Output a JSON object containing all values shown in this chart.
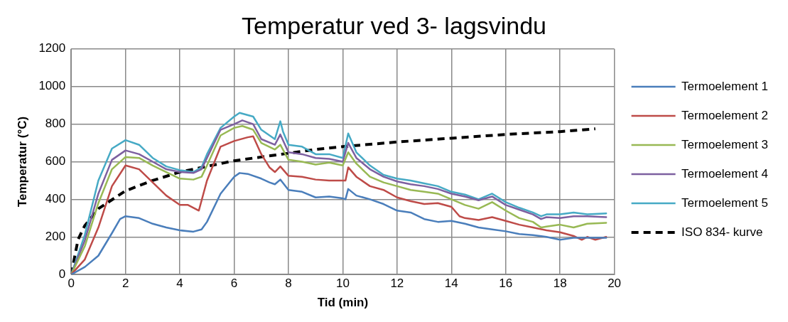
{
  "chart_data": {
    "type": "line",
    "title": "Temperatur ved 3- lagsvindu",
    "xlabel": "Tid (min)",
    "ylabel": "Temperatur (°C)",
    "xlim": [
      0,
      20
    ],
    "xticks": [
      0,
      2,
      4,
      6,
      8,
      10,
      12,
      14,
      16,
      18,
      20
    ],
    "ylim": [
      0,
      1200
    ],
    "yticks": [
      0,
      200,
      400,
      600,
      800,
      1000,
      1200
    ],
    "grid": true,
    "legend": "right",
    "marker": "none",
    "series": [
      {
        "name": "Termoelement 1",
        "color": "#4a7ebb",
        "x": [
          0,
          0.5,
          1,
          1.5,
          1.8,
          2,
          2.5,
          3,
          3.5,
          4,
          4.5,
          4.8,
          5,
          5.5,
          6,
          6.2,
          6.5,
          7,
          7.3,
          7.5,
          7.7,
          8,
          8.5,
          9,
          9.5,
          10,
          10.1,
          10.2,
          10.5,
          11,
          11.5,
          12,
          12.5,
          13,
          13.5,
          14,
          14.5,
          15,
          15.5,
          16,
          16.5,
          17,
          17.5,
          18,
          18.5,
          19,
          19.7
        ],
        "values": [
          0,
          40,
          100,
          220,
          295,
          310,
          300,
          270,
          250,
          235,
          228,
          240,
          280,
          430,
          520,
          540,
          535,
          510,
          490,
          480,
          505,
          450,
          440,
          410,
          415,
          405,
          400,
          455,
          420,
          400,
          375,
          340,
          330,
          295,
          280,
          285,
          270,
          250,
          240,
          230,
          215,
          210,
          200,
          185,
          195,
          195,
          195
        ]
      },
      {
        "name": "Termoelement 2",
        "color": "#be4b48",
        "x": [
          0,
          0.5,
          1,
          1.5,
          2,
          2.5,
          3,
          3.5,
          4,
          4.3,
          4.7,
          5,
          5.5,
          6,
          6.5,
          6.7,
          7,
          7.3,
          7.5,
          7.7,
          8,
          8.5,
          9,
          9.5,
          10.1,
          10.2,
          10.5,
          11,
          11.5,
          12,
          12.5,
          13,
          13.5,
          14,
          14.3,
          14.5,
          15,
          15.5,
          16,
          16.5,
          17,
          17.5,
          18,
          18.5,
          18.8,
          19,
          19.3,
          19.7
        ],
        "values": [
          0,
          80,
          250,
          470,
          580,
          560,
          490,
          420,
          370,
          370,
          340,
          500,
          680,
          710,
          730,
          735,
          640,
          570,
          545,
          575,
          525,
          520,
          505,
          500,
          500,
          570,
          520,
          470,
          450,
          410,
          390,
          375,
          380,
          360,
          310,
          300,
          290,
          305,
          285,
          265,
          250,
          235,
          225,
          205,
          185,
          200,
          185,
          200
        ]
      },
      {
        "name": "Termoelement 3",
        "color": "#98b954",
        "x": [
          0,
          0.5,
          1,
          1.5,
          2,
          2.5,
          3,
          3.5,
          4,
          4.5,
          4.8,
          5,
          5.5,
          6,
          6.3,
          6.7,
          7,
          7.5,
          7.7,
          8,
          8.5,
          9,
          9.5,
          10,
          10.2,
          10.5,
          11,
          11.5,
          12,
          12.5,
          13,
          13.5,
          14,
          14.5,
          15,
          15.5,
          16,
          16.5,
          17,
          17.3,
          17.5,
          18,
          18.5,
          19,
          19.7
        ],
        "values": [
          0,
          150,
          380,
          560,
          625,
          620,
          580,
          545,
          510,
          505,
          520,
          580,
          740,
          780,
          790,
          770,
          700,
          665,
          690,
          610,
          600,
          585,
          595,
          580,
          650,
          590,
          520,
          490,
          470,
          450,
          440,
          430,
          400,
          370,
          350,
          385,
          340,
          300,
          280,
          250,
          255,
          265,
          250,
          270,
          275
        ]
      },
      {
        "name": "Termoelement 4",
        "color": "#7d60a0",
        "x": [
          0,
          0.5,
          1,
          1.5,
          2,
          2.5,
          3,
          3.5,
          4,
          4.5,
          4.8,
          5,
          5.5,
          6,
          6.3,
          6.7,
          7,
          7.5,
          7.7,
          8,
          8.5,
          9,
          9.5,
          10,
          10.2,
          10.5,
          11,
          11.5,
          12,
          12.5,
          13,
          13.5,
          14,
          14.5,
          15,
          15.5,
          16,
          16.5,
          17,
          17.3,
          17.5,
          18,
          18.5,
          19,
          19.7
        ],
        "values": [
          0,
          180,
          430,
          610,
          660,
          640,
          600,
          560,
          545,
          540,
          560,
          620,
          770,
          800,
          820,
          800,
          720,
          690,
          745,
          650,
          640,
          620,
          615,
          600,
          700,
          620,
          560,
          520,
          495,
          480,
          470,
          455,
          430,
          415,
          395,
          415,
          370,
          345,
          320,
          295,
          305,
          300,
          310,
          310,
          305
        ]
      },
      {
        "name": "Termoelement 5",
        "color": "#46aac5",
        "x": [
          0,
          0.5,
          1,
          1.5,
          2,
          2.5,
          3,
          3.5,
          4,
          4.5,
          4.8,
          5,
          5.5,
          6,
          6.2,
          6.7,
          7,
          7.5,
          7.7,
          7.8,
          8,
          8.5,
          9,
          9.5,
          10,
          10.2,
          10.5,
          11,
          11.5,
          12,
          12.5,
          13,
          13.5,
          14,
          14.5,
          15,
          15.5,
          16,
          16.5,
          17,
          17.3,
          17.5,
          18,
          18.5,
          19,
          19.7
        ],
        "values": [
          0,
          210,
          500,
          670,
          715,
          690,
          620,
          575,
          555,
          545,
          570,
          640,
          780,
          840,
          860,
          840,
          770,
          720,
          815,
          760,
          690,
          680,
          640,
          640,
          620,
          750,
          650,
          580,
          530,
          510,
          500,
          485,
          470,
          440,
          425,
          400,
          430,
          385,
          355,
          330,
          310,
          320,
          320,
          330,
          320,
          325
        ]
      },
      {
        "name": "ISO 834- kurve",
        "color": "#000000",
        "line_style": "dashed",
        "x": [
          0,
          0.25,
          0.5,
          1,
          2,
          3,
          4,
          5,
          6,
          7,
          8,
          9,
          10,
          12,
          14,
          16,
          18,
          19.3
        ],
        "values": [
          0,
          185,
          260,
          350,
          445,
          500,
          545,
          575,
          605,
          625,
          645,
          665,
          680,
          705,
          725,
          745,
          760,
          775
        ]
      }
    ]
  }
}
